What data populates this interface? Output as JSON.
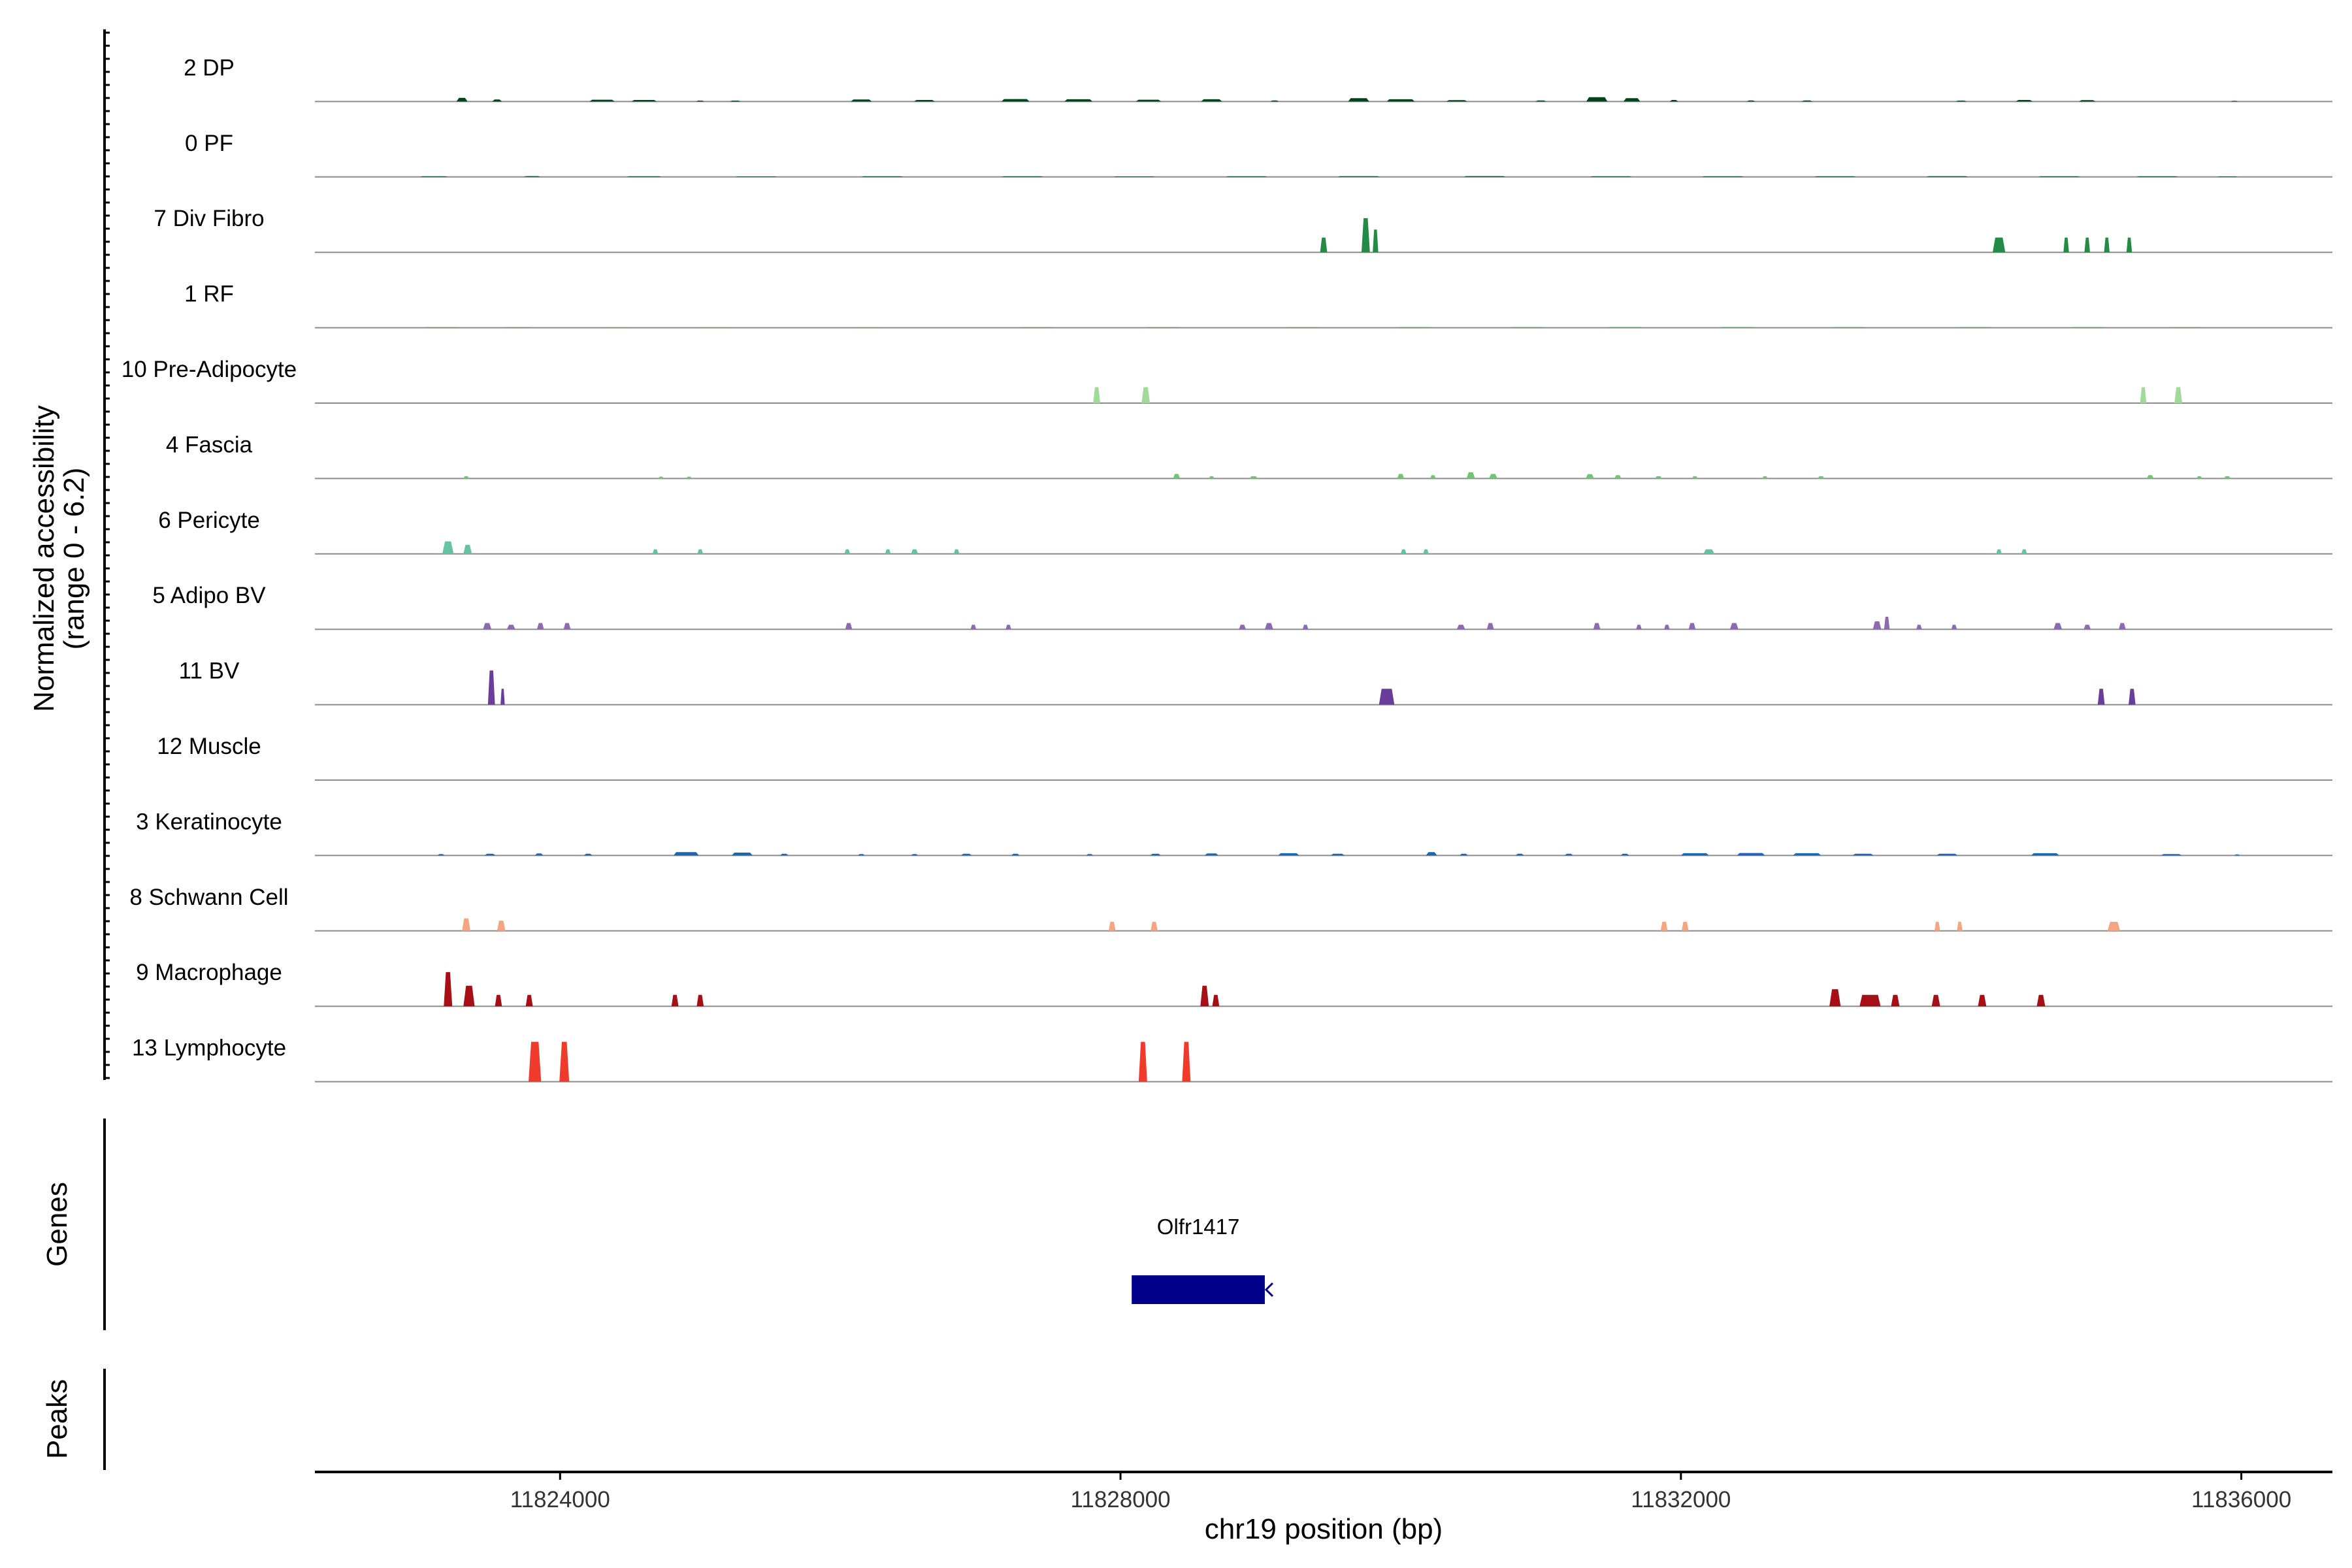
{
  "chart_data": {
    "type": "area",
    "y_axis_title_line1": "Normalized accessibility",
    "y_axis_title_line2": "(range 0 - 6.2)",
    "y_range": [
      0,
      6.2
    ],
    "x_axis_title": "chr19 position (bp)",
    "x_range": [
      11822250,
      11836650
    ],
    "x_ticks": [
      {
        "value": 11824000,
        "label": "11824000"
      },
      {
        "value": 11828000,
        "label": "11828000"
      },
      {
        "value": 11832000,
        "label": "11832000"
      },
      {
        "value": 11836000,
        "label": "11836000"
      }
    ],
    "genes_panel_label": "Genes",
    "peaks_panel_label": "Peaks",
    "genes": [
      {
        "name": "Olfr1417",
        "start": 11828080,
        "end": 11829030,
        "strand": "-",
        "color": "#00008b"
      }
    ],
    "tracks": [
      {
        "name": "2 DP",
        "color": "#00441b",
        "peaks": [
          [
            11823300,
            80,
            0.32
          ],
          [
            11823550,
            70,
            0.18
          ],
          [
            11824300,
            180,
            0.16
          ],
          [
            11824600,
            180,
            0.14
          ],
          [
            11825000,
            60,
            0.08
          ],
          [
            11825250,
            80,
            0.08
          ],
          [
            11826150,
            150,
            0.18
          ],
          [
            11826600,
            150,
            0.14
          ],
          [
            11827250,
            200,
            0.22
          ],
          [
            11827700,
            200,
            0.2
          ],
          [
            11828200,
            180,
            0.16
          ],
          [
            11828650,
            150,
            0.2
          ],
          [
            11829100,
            60,
            0.1
          ],
          [
            11829700,
            150,
            0.3
          ],
          [
            11830000,
            200,
            0.2
          ],
          [
            11830400,
            150,
            0.12
          ],
          [
            11831000,
            80,
            0.1
          ],
          [
            11831400,
            150,
            0.38
          ],
          [
            11831650,
            120,
            0.3
          ],
          [
            11831950,
            60,
            0.14
          ],
          [
            11832500,
            60,
            0.1
          ],
          [
            11832900,
            80,
            0.1
          ],
          [
            11834000,
            80,
            0.08
          ],
          [
            11834450,
            120,
            0.14
          ],
          [
            11834900,
            120,
            0.12
          ],
          [
            11835950,
            50,
            0.06
          ]
        ]
      },
      {
        "name": "0 PF",
        "color": "#00441b",
        "peaks": [
          [
            11823100,
            200,
            0.05
          ],
          [
            11823800,
            120,
            0.07
          ],
          [
            11824600,
            250,
            0.05
          ],
          [
            11825400,
            300,
            0.04
          ],
          [
            11826300,
            300,
            0.05
          ],
          [
            11827300,
            300,
            0.05
          ],
          [
            11828100,
            300,
            0.04
          ],
          [
            11828900,
            300,
            0.05
          ],
          [
            11829700,
            300,
            0.06
          ],
          [
            11830600,
            300,
            0.07
          ],
          [
            11831500,
            300,
            0.05
          ],
          [
            11832300,
            300,
            0.05
          ],
          [
            11833100,
            300,
            0.05
          ],
          [
            11833900,
            300,
            0.06
          ],
          [
            11834700,
            300,
            0.05
          ],
          [
            11835400,
            300,
            0.05
          ],
          [
            11835900,
            150,
            0.04
          ]
        ]
      },
      {
        "name": "7 Div Fibro",
        "color": "#238b45",
        "peaks": [
          [
            11829450,
            50,
            1.3
          ],
          [
            11829750,
            60,
            3.0
          ],
          [
            11829820,
            40,
            2.0
          ],
          [
            11834270,
            90,
            1.3
          ],
          [
            11834750,
            40,
            1.3
          ],
          [
            11834900,
            40,
            1.3
          ],
          [
            11835040,
            40,
            1.3
          ],
          [
            11835200,
            40,
            1.3
          ]
        ]
      },
      {
        "name": "1 RF",
        "color": "#41ab5d",
        "peaks": [
          [
            11823150,
            250,
            0.04
          ],
          [
            11823700,
            200,
            0.04
          ],
          [
            11824400,
            200,
            0.03
          ],
          [
            11825100,
            250,
            0.03
          ],
          [
            11826200,
            200,
            0.03
          ],
          [
            11827400,
            250,
            0.04
          ],
          [
            11828300,
            250,
            0.04
          ],
          [
            11829300,
            250,
            0.04
          ],
          [
            11830100,
            250,
            0.05
          ],
          [
            11830900,
            250,
            0.05
          ],
          [
            11831600,
            250,
            0.06
          ],
          [
            11832400,
            250,
            0.06
          ],
          [
            11833200,
            250,
            0.05
          ],
          [
            11834100,
            250,
            0.05
          ],
          [
            11834900,
            250,
            0.05
          ],
          [
            11835600,
            250,
            0.04
          ]
        ]
      },
      {
        "name": "10 Pre-Adipocyte",
        "color": "#a1d99b",
        "peaks": [
          [
            11827830,
            50,
            1.4
          ],
          [
            11828180,
            60,
            1.4
          ],
          [
            11835300,
            45,
            1.4
          ],
          [
            11835550,
            55,
            1.4
          ]
        ]
      },
      {
        "name": "4 Fascia",
        "color": "#74c476",
        "peaks": [
          [
            11823330,
            40,
            0.2
          ],
          [
            11824720,
            40,
            0.16
          ],
          [
            11824920,
            40,
            0.16
          ],
          [
            11828400,
            50,
            0.4
          ],
          [
            11828650,
            40,
            0.2
          ],
          [
            11828950,
            60,
            0.2
          ],
          [
            11830000,
            50,
            0.4
          ],
          [
            11830230,
            40,
            0.3
          ],
          [
            11830500,
            60,
            0.55
          ],
          [
            11830660,
            60,
            0.4
          ],
          [
            11831350,
            60,
            0.38
          ],
          [
            11831550,
            50,
            0.3
          ],
          [
            11831840,
            50,
            0.2
          ],
          [
            11832100,
            40,
            0.2
          ],
          [
            11832600,
            40,
            0.2
          ],
          [
            11833000,
            50,
            0.2
          ],
          [
            11835350,
            50,
            0.3
          ],
          [
            11835700,
            40,
            0.2
          ],
          [
            11835900,
            50,
            0.2
          ]
        ]
      },
      {
        "name": "6 Pericyte",
        "color": "#66c2a4",
        "peaks": [
          [
            11823200,
            80,
            1.1
          ],
          [
            11823340,
            60,
            0.8
          ],
          [
            11824680,
            40,
            0.4
          ],
          [
            11825000,
            40,
            0.4
          ],
          [
            11826050,
            40,
            0.4
          ],
          [
            11826340,
            40,
            0.4
          ],
          [
            11826530,
            50,
            0.4
          ],
          [
            11826830,
            40,
            0.4
          ],
          [
            11830020,
            40,
            0.4
          ],
          [
            11830180,
            40,
            0.4
          ],
          [
            11832200,
            80,
            0.4
          ],
          [
            11834270,
            40,
            0.4
          ],
          [
            11834450,
            40,
            0.4
          ]
        ]
      },
      {
        "name": "5 Adipo BV",
        "color": "#8c6bb1",
        "peaks": [
          [
            11823480,
            60,
            0.55
          ],
          [
            11823650,
            60,
            0.4
          ],
          [
            11823860,
            50,
            0.55
          ],
          [
            11824050,
            50,
            0.55
          ],
          [
            11826060,
            50,
            0.55
          ],
          [
            11826950,
            40,
            0.4
          ],
          [
            11827200,
            40,
            0.4
          ],
          [
            11828870,
            50,
            0.4
          ],
          [
            11829060,
            60,
            0.55
          ],
          [
            11829320,
            40,
            0.4
          ],
          [
            11830430,
            60,
            0.4
          ],
          [
            11830640,
            50,
            0.55
          ],
          [
            11831400,
            50,
            0.55
          ],
          [
            11831700,
            40,
            0.4
          ],
          [
            11831900,
            40,
            0.4
          ],
          [
            11832080,
            50,
            0.55
          ],
          [
            11832380,
            60,
            0.55
          ],
          [
            11833400,
            60,
            0.7
          ],
          [
            11833470,
            40,
            1.1
          ],
          [
            11833700,
            40,
            0.4
          ],
          [
            11833950,
            40,
            0.4
          ],
          [
            11834690,
            60,
            0.55
          ],
          [
            11834900,
            50,
            0.4
          ],
          [
            11835150,
            50,
            0.55
          ]
        ]
      },
      {
        "name": "11 BV",
        "color": "#6a3d9a",
        "peaks": [
          [
            11823510,
            50,
            3.0
          ],
          [
            11823590,
            30,
            1.4
          ],
          [
            11829900,
            110,
            1.4
          ],
          [
            11835000,
            50,
            1.4
          ],
          [
            11835220,
            50,
            1.4
          ]
        ]
      },
      {
        "name": "12 Muscle",
        "color": "#54278f",
        "peaks": []
      },
      {
        "name": "3 Keratinocyte",
        "color": "#2166ac",
        "peaks": [
          [
            11823150,
            50,
            0.12
          ],
          [
            11823500,
            80,
            0.15
          ],
          [
            11823850,
            60,
            0.18
          ],
          [
            11824200,
            60,
            0.15
          ],
          [
            11824900,
            180,
            0.3
          ],
          [
            11825300,
            150,
            0.25
          ],
          [
            11825600,
            60,
            0.15
          ],
          [
            11826150,
            50,
            0.12
          ],
          [
            11826530,
            50,
            0.12
          ],
          [
            11826900,
            80,
            0.15
          ],
          [
            11827250,
            60,
            0.15
          ],
          [
            11827780,
            50,
            0.12
          ],
          [
            11828250,
            80,
            0.15
          ],
          [
            11828650,
            100,
            0.18
          ],
          [
            11829200,
            150,
            0.2
          ],
          [
            11829550,
            100,
            0.15
          ],
          [
            11830220,
            80,
            0.3
          ],
          [
            11830450,
            60,
            0.15
          ],
          [
            11830850,
            60,
            0.15
          ],
          [
            11831200,
            60,
            0.15
          ],
          [
            11831600,
            60,
            0.15
          ],
          [
            11832100,
            200,
            0.2
          ],
          [
            11832500,
            200,
            0.22
          ],
          [
            11832900,
            200,
            0.2
          ],
          [
            11833300,
            150,
            0.15
          ],
          [
            11833900,
            150,
            0.15
          ],
          [
            11834600,
            200,
            0.2
          ],
          [
            11835500,
            150,
            0.12
          ],
          [
            11835970,
            40,
            0.1
          ]
        ]
      },
      {
        "name": "8 Schwann Cell",
        "color": "#f4a582",
        "peaks": [
          [
            11823330,
            60,
            1.1
          ],
          [
            11823580,
            60,
            0.9
          ],
          [
            11827940,
            50,
            0.8
          ],
          [
            11828240,
            50,
            0.8
          ],
          [
            11831880,
            50,
            0.8
          ],
          [
            11832030,
            50,
            0.8
          ],
          [
            11833830,
            40,
            0.8
          ],
          [
            11833990,
            40,
            0.8
          ],
          [
            11835090,
            90,
            0.8
          ]
        ]
      },
      {
        "name": "9 Macrophage",
        "color": "#a50f15",
        "peaks": [
          [
            11823200,
            60,
            3.0
          ],
          [
            11823350,
            80,
            1.8
          ],
          [
            11823560,
            50,
            1.0
          ],
          [
            11823780,
            50,
            1.0
          ],
          [
            11824820,
            50,
            1.0
          ],
          [
            11825000,
            50,
            1.0
          ],
          [
            11828600,
            60,
            1.8
          ],
          [
            11828680,
            50,
            1.0
          ],
          [
            11833100,
            80,
            1.5
          ],
          [
            11833350,
            150,
            1.0
          ],
          [
            11833530,
            60,
            1.0
          ],
          [
            11833820,
            60,
            1.0
          ],
          [
            11834150,
            60,
            1.0
          ],
          [
            11834570,
            60,
            1.0
          ]
        ]
      },
      {
        "name": "13 Lymphocyte",
        "color": "#ef3b2c",
        "peaks": [
          [
            11823820,
            90,
            3.5
          ],
          [
            11824030,
            70,
            3.5
          ],
          [
            11828160,
            60,
            3.5
          ],
          [
            11828470,
            60,
            3.5
          ]
        ]
      }
    ]
  }
}
